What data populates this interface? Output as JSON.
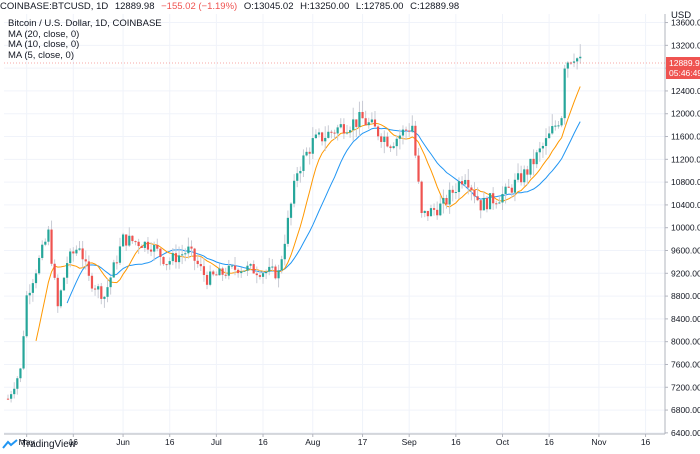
{
  "header": {
    "symbol": "COINBASE:BTCUSD, 1D",
    "price": "12889.98",
    "change": "−155.02 (−1.19%)",
    "open": "O:13045.02",
    "high": "H:13250.00",
    "low": "L:12785.00",
    "close": "C:12889.98"
  },
  "legend": {
    "title": "Bitcoin / U.S. Dollar, 1D, COINBASE",
    "items": [
      "MA (20, close, 0)",
      "MA (10, close, 0)",
      "MA (5, close, 0)"
    ]
  },
  "price_axis": {
    "currency": "USD",
    "last_price": "12889.98",
    "countdown": "05:46:49"
  },
  "branding": {
    "logo_text": "TradingView"
  },
  "colors": {
    "up": "#26a69a",
    "down": "#ef5350",
    "ma20": "#2196f3",
    "ma10": "#ff9800",
    "ma5": "#2196f3",
    "label_bg": "#ef5350"
  },
  "chart_data": {
    "type": "candlestick",
    "y_ticks": [
      6400,
      6800,
      7200,
      7600,
      8000,
      8400,
      8800,
      9200,
      9600,
      10000,
      10400,
      10800,
      11200,
      11600,
      12000,
      12400,
      12800,
      13200,
      13600
    ],
    "ylim": [
      6380,
      13750
    ],
    "x_labels": [
      "May",
      "16",
      "Jun",
      "16",
      "Jul",
      "16",
      "Aug",
      "17",
      "Sep",
      "16",
      "Oct",
      "16",
      "Nov",
      "16"
    ],
    "price_path": [
      [
        "2020-04-25",
        7000
      ],
      [
        "2020-04-29",
        7500
      ],
      [
        "2020-05-01",
        8800
      ],
      [
        "2020-05-08",
        9900
      ],
      [
        "2020-05-11",
        8600
      ],
      [
        "2020-05-14",
        9400
      ],
      [
        "2020-05-18",
        9700
      ],
      [
        "2020-05-21",
        9100
      ],
      [
        "2020-05-26",
        8800
      ],
      [
        "2020-06-01",
        9800
      ],
      [
        "2020-06-10",
        9700
      ],
      [
        "2020-06-15",
        9400
      ],
      [
        "2020-06-22",
        9600
      ],
      [
        "2020-06-28",
        9100
      ],
      [
        "2020-07-08",
        9300
      ],
      [
        "2020-07-21",
        9200
      ],
      [
        "2020-07-27",
        11000
      ],
      [
        "2020-08-01",
        11500
      ],
      [
        "2020-08-11",
        11800
      ],
      [
        "2020-08-17",
        11900
      ],
      [
        "2020-08-26",
        11500
      ],
      [
        "2020-09-02",
        11800
      ],
      [
        "2020-09-05",
        10200
      ],
      [
        "2020-09-12",
        10400
      ],
      [
        "2020-09-19",
        10950
      ],
      [
        "2020-09-24",
        10400
      ],
      [
        "2020-10-02",
        10600
      ],
      [
        "2020-10-09",
        11000
      ],
      [
        "2020-10-15",
        11500
      ],
      [
        "2020-10-20",
        12000
      ],
      [
        "2020-10-21",
        12900
      ],
      [
        "2020-10-24",
        13050
      ],
      [
        "2020-10-26",
        12890
      ]
    ]
  }
}
